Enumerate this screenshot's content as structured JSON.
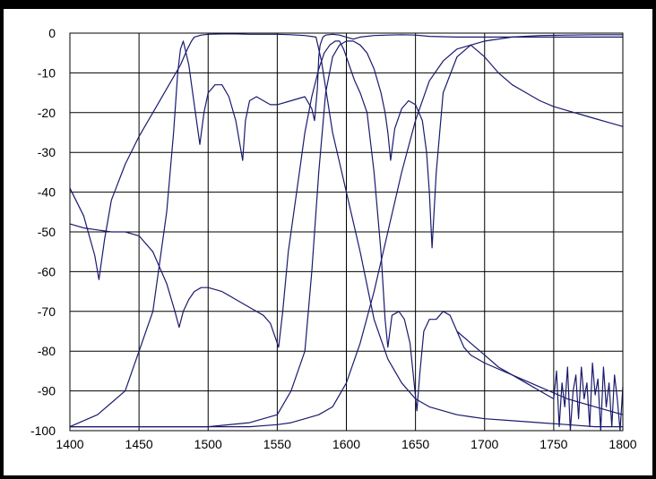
{
  "chart_data": {
    "type": "line",
    "title": "",
    "xlabel": "",
    "ylabel": "",
    "xlim": [
      1400,
      1800
    ],
    "ylim": [
      -100,
      0
    ],
    "x_ticks": [
      "1400",
      "1450",
      "1500",
      "1550",
      "1600",
      "1650",
      "1700",
      "1750",
      "1800"
    ],
    "y_ticks": [
      "0",
      "-10",
      "-20",
      "-30",
      "-40",
      "-50",
      "-60",
      "-70",
      "-80",
      "-90",
      "-100"
    ],
    "grid": true,
    "line_color": "#1a1a6e",
    "series": [
      {
        "x": [
          1400,
          1410,
          1418,
          1421,
          1425,
          1430,
          1440,
          1450,
          1460,
          1470,
          1480,
          1485,
          1488,
          1490,
          1495,
          1500,
          1510,
          1520,
          1530,
          1540,
          1550,
          1560,
          1570,
          1578,
          1582,
          1590,
          1600,
          1610,
          1620,
          1630,
          1640,
          1650,
          1660,
          1670,
          1680,
          1690,
          1700,
          1720,
          1740,
          1760,
          1780,
          1800
        ],
        "y": [
          -39,
          -46,
          -56,
          -62,
          -52,
          -42,
          -33,
          -26,
          -20,
          -14,
          -8,
          -4,
          -2,
          -1,
          -0.5,
          -0.3,
          -0.2,
          -0.2,
          -0.3,
          -0.3,
          -0.3,
          -0.4,
          -0.6,
          -1,
          -7,
          -25,
          -40,
          -55,
          -72,
          -82,
          -88,
          -92,
          -94,
          -95,
          -96,
          -96.5,
          -97,
          -97.5,
          -98,
          -98.5,
          -99,
          -99
        ]
      },
      {
        "x": [
          1400,
          1420,
          1440,
          1460,
          1470,
          1475,
          1478,
          1480,
          1482,
          1486,
          1490,
          1494,
          1497,
          1500,
          1505,
          1510,
          1515,
          1520,
          1523,
          1525,
          1527,
          1530,
          1535,
          1540,
          1545,
          1550,
          1560,
          1570,
          1575,
          1577,
          1579,
          1580,
          1581,
          1583,
          1585,
          1590,
          1595,
          1600,
          1605,
          1610,
          1620,
          1630,
          1640,
          1650,
          1660,
          1680,
          1700,
          1720,
          1750,
          1775,
          1800
        ],
        "y": [
          -99,
          -96,
          -90,
          -70,
          -45,
          -25,
          -10,
          -4,
          -2,
          -8,
          -18,
          -28,
          -20,
          -15,
          -13,
          -13,
          -16,
          -22,
          -28,
          -32,
          -22,
          -17,
          -16,
          -17,
          -18,
          -18,
          -17,
          -16,
          -19,
          -22,
          -14,
          -6,
          -3,
          -1,
          -0.5,
          -0.3,
          -0.5,
          -1,
          -1.5,
          -1,
          -0.6,
          -0.5,
          -0.4,
          -0.5,
          -0.8,
          -1,
          -1,
          -1,
          -1,
          -1,
          -1
        ]
      },
      {
        "x": [
          1400,
          1450,
          1500,
          1530,
          1550,
          1560,
          1570,
          1575,
          1580,
          1585,
          1590,
          1595,
          1600,
          1605,
          1610,
          1615,
          1620,
          1625,
          1628,
          1630,
          1632,
          1635,
          1640,
          1645,
          1650,
          1655,
          1658,
          1660,
          1662,
          1665,
          1670,
          1680,
          1690,
          1700,
          1720,
          1740,
          1760,
          1780,
          1800
        ],
        "y": [
          -99,
          -99,
          -99,
          -98,
          -96,
          -90,
          -80,
          -60,
          -35,
          -15,
          -6,
          -3,
          -2,
          -2,
          -3,
          -5,
          -9,
          -15,
          -20,
          -25,
          -32,
          -24,
          -19,
          -17,
          -18,
          -22,
          -30,
          -40,
          -54,
          -35,
          -15,
          -6,
          -3,
          -2,
          -1,
          -0.6,
          -0.5,
          -0.4,
          -0.4
        ]
      },
      {
        "x": [
          1400,
          1410,
          1420,
          1430,
          1440,
          1450,
          1460,
          1470,
          1476,
          1479,
          1482,
          1486,
          1490,
          1495,
          1500,
          1510,
          1520,
          1530,
          1540,
          1545,
          1548,
          1551,
          1554,
          1558,
          1562,
          1566,
          1570,
          1575,
          1580,
          1584,
          1588,
          1592,
          1595,
          1598,
          1600,
          1603,
          1606,
          1610,
          1615,
          1620,
          1625,
          1628,
          1630,
          1633,
          1638,
          1642,
          1646,
          1649,
          1651,
          1653,
          1656,
          1660,
          1665,
          1670,
          1675,
          1680,
          1685,
          1690,
          1700,
          1720,
          1740,
          1760,
          1780,
          1800
        ],
        "y": [
          -48,
          -49,
          -49.5,
          -50,
          -50,
          -51,
          -55,
          -63,
          -70,
          -74,
          -70,
          -67,
          -65,
          -64,
          -64,
          -65,
          -67,
          -69,
          -71,
          -73,
          -76,
          -79,
          -70,
          -55,
          -45,
          -35,
          -25,
          -16,
          -9,
          -5,
          -3,
          -2,
          -2,
          -4,
          -6,
          -9,
          -12,
          -15,
          -20,
          -35,
          -55,
          -72,
          -79,
          -71,
          -70,
          -72,
          -78,
          -88,
          -95,
          -86,
          -75,
          -72,
          -72,
          -70,
          -71,
          -75,
          -79,
          -81,
          -83,
          -86,
          -89,
          -92,
          -94,
          -96
        ]
      },
      {
        "x": [
          1400,
          1450,
          1500,
          1530,
          1550,
          1560,
          1570,
          1580,
          1590,
          1600,
          1610,
          1620,
          1630,
          1640,
          1650,
          1660,
          1670,
          1680,
          1690,
          1700,
          1710,
          1720,
          1730,
          1740,
          1750,
          1760,
          1770,
          1780,
          1790,
          1800
        ],
        "y": [
          -99,
          -99,
          -99,
          -99,
          -98.5,
          -98,
          -97,
          -96,
          -94,
          -88,
          -78,
          -65,
          -50,
          -35,
          -22,
          -12,
          -7,
          -4,
          -3,
          -6,
          -10,
          -13,
          -15,
          -17,
          -18.5,
          -19.5,
          -20.5,
          -21.5,
          -22.5,
          -23.5
        ]
      },
      {
        "x": [
          1680,
          1690,
          1700,
          1710,
          1720,
          1730,
          1740,
          1750,
          1752,
          1754,
          1756,
          1758,
          1760,
          1762,
          1764,
          1766,
          1768,
          1770,
          1772,
          1774,
          1776,
          1778,
          1780,
          1782,
          1784,
          1786,
          1788,
          1790,
          1792,
          1794,
          1796,
          1798,
          1800
        ],
        "y": [
          -75,
          -78,
          -81,
          -84,
          -86,
          -88,
          -90,
          -92,
          -85,
          -99,
          -88,
          -94,
          -84,
          -100,
          -90,
          -86,
          -97,
          -84,
          -92,
          -88,
          -99,
          -83,
          -91,
          -87,
          -100,
          -84,
          -94,
          -88,
          -99,
          -86,
          -92,
          -100,
          -89
        ]
      }
    ]
  }
}
